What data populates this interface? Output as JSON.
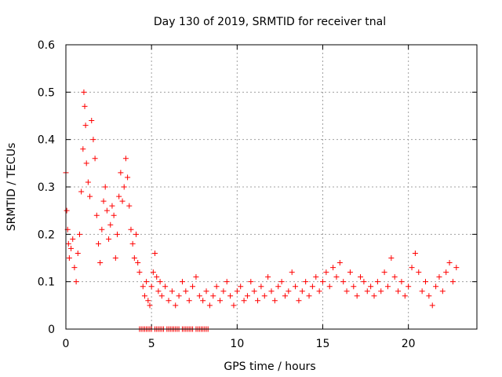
{
  "chart_data": {
    "type": "scatter",
    "title": "Day 130 of 2019, SRMTID for receiver tnal",
    "xlabel": "GPS time / hours",
    "ylabel": "SRMTID / TECUs",
    "xlim": [
      0,
      24
    ],
    "ylim": [
      0,
      0.6
    ],
    "xticks": [
      0,
      5,
      10,
      15,
      20
    ],
    "yticks": [
      0,
      0.1,
      0.2,
      0.3,
      0.4,
      0.5,
      0.6
    ],
    "xtick_labels": [
      "0",
      "5",
      "10",
      "15",
      "20"
    ],
    "ytick_labels": [
      "0",
      "0.1",
      "0.2",
      "0.3",
      "0.4",
      "0.5",
      "0.6"
    ],
    "grid": true,
    "marker": "+",
    "marker_color": "#ff0000",
    "series": [
      {
        "name": "SRMTID",
        "x": [
          0.0,
          0.05,
          0.1,
          0.15,
          0.2,
          0.3,
          0.4,
          0.5,
          0.6,
          0.7,
          0.8,
          0.9,
          1.0,
          1.05,
          1.1,
          1.15,
          1.2,
          1.3,
          1.4,
          1.5,
          1.6,
          1.7,
          1.8,
          1.9,
          2.0,
          2.1,
          2.2,
          2.3,
          2.4,
          2.5,
          2.6,
          2.7,
          2.8,
          2.9,
          3.0,
          3.1,
          3.2,
          3.3,
          3.4,
          3.5,
          3.6,
          3.7,
          3.8,
          3.9,
          4.0,
          4.1,
          4.2,
          4.3,
          4.5,
          4.6,
          4.7,
          4.8,
          4.9,
          5.0,
          5.1,
          5.2,
          5.3,
          5.4,
          5.5,
          5.6,
          5.8,
          6.0,
          6.2,
          6.4,
          6.6,
          6.8,
          7.0,
          7.2,
          7.4,
          7.6,
          7.8,
          8.0,
          8.2,
          8.4,
          8.6,
          8.8,
          9.0,
          9.2,
          9.4,
          9.6,
          9.8,
          10.0,
          10.2,
          10.4,
          10.6,
          10.8,
          11.0,
          11.2,
          11.4,
          11.6,
          11.8,
          12.0,
          12.2,
          12.4,
          12.6,
          12.8,
          13.0,
          13.2,
          13.4,
          13.6,
          13.8,
          14.0,
          14.2,
          14.4,
          14.6,
          14.8,
          15.0,
          15.2,
          15.4,
          15.6,
          15.8,
          16.0,
          16.2,
          16.4,
          16.6,
          16.8,
          17.0,
          17.2,
          17.4,
          17.6,
          17.8,
          18.0,
          18.2,
          18.4,
          18.6,
          18.8,
          19.0,
          19.2,
          19.4,
          19.6,
          19.8,
          20.0,
          20.2,
          20.4,
          20.6,
          20.8,
          21.0,
          21.2,
          21.4,
          21.6,
          21.8,
          22.0,
          22.2,
          22.4,
          22.6,
          22.8
        ],
        "y": [
          0.33,
          0.25,
          0.21,
          0.18,
          0.15,
          0.17,
          0.19,
          0.13,
          0.1,
          0.16,
          0.2,
          0.29,
          0.38,
          0.5,
          0.47,
          0.43,
          0.35,
          0.31,
          0.28,
          0.44,
          0.4,
          0.36,
          0.24,
          0.18,
          0.14,
          0.21,
          0.27,
          0.3,
          0.25,
          0.19,
          0.22,
          0.26,
          0.24,
          0.15,
          0.2,
          0.28,
          0.33,
          0.27,
          0.3,
          0.36,
          0.32,
          0.26,
          0.21,
          0.18,
          0.15,
          0.2,
          0.14,
          0.12,
          0.09,
          0.07,
          0.1,
          0.06,
          0.05,
          0.09,
          0.12,
          0.16,
          0.11,
          0.08,
          0.1,
          0.07,
          0.09,
          0.06,
          0.08,
          0.05,
          0.07,
          0.1,
          0.08,
          0.06,
          0.09,
          0.11,
          0.07,
          0.06,
          0.08,
          0.05,
          0.07,
          0.09,
          0.06,
          0.08,
          0.1,
          0.07,
          0.05,
          0.08,
          0.09,
          0.06,
          0.07,
          0.1,
          0.08,
          0.06,
          0.09,
          0.07,
          0.11,
          0.08,
          0.06,
          0.09,
          0.1,
          0.07,
          0.08,
          0.12,
          0.09,
          0.06,
          0.08,
          0.1,
          0.07,
          0.09,
          0.11,
          0.08,
          0.1,
          0.12,
          0.09,
          0.13,
          0.11,
          0.14,
          0.1,
          0.08,
          0.12,
          0.09,
          0.07,
          0.11,
          0.1,
          0.08,
          0.09,
          0.07,
          0.1,
          0.08,
          0.12,
          0.09,
          0.15,
          0.11,
          0.08,
          0.1,
          0.07,
          0.09,
          0.13,
          0.16,
          0.12,
          0.08,
          0.1,
          0.07,
          0.05,
          0.09,
          0.11,
          0.08,
          0.12,
          0.14,
          0.1,
          0.13
        ],
        "zero_x": [
          4.3,
          4.4,
          4.5,
          4.6,
          4.7,
          4.8,
          4.9,
          5.0,
          5.2,
          5.3,
          5.4,
          5.5,
          5.6,
          5.7,
          5.9,
          6.0,
          6.1,
          6.2,
          6.3,
          6.4,
          6.5,
          6.6,
          6.8,
          6.9,
          7.0,
          7.1,
          7.2,
          7.3,
          7.4,
          7.6,
          7.7,
          7.8,
          7.9,
          8.0,
          8.1,
          8.2,
          8.3
        ]
      }
    ]
  }
}
